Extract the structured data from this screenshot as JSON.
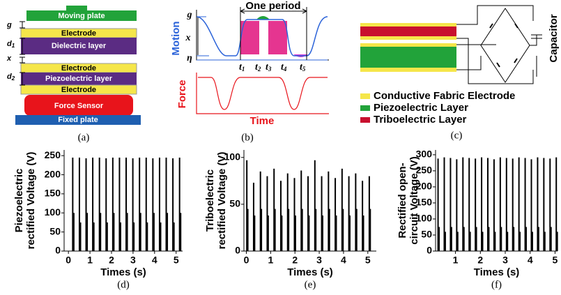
{
  "panel_a": {
    "moving_plate": "Moving plate",
    "electrode_1": "Electrode",
    "dielectric": "Dielectric layer",
    "electrode_2": "Electrode",
    "piezo": "Piezoelectric layer",
    "electrode_3": "Electrode",
    "force_sensor": "Force Sensor",
    "fixed_plate": "Fixed plate",
    "g": "g",
    "d1": {
      "base": "d",
      "sub": "1"
    },
    "x": "x",
    "d2": {
      "base": "d",
      "sub": "2"
    },
    "caption": "(a)"
  },
  "panel_b": {
    "one_period": "One period",
    "g": "g",
    "x": "x",
    "eta": "η",
    "motion": "Motion",
    "force": "Force",
    "time": "Time",
    "t_labels": [
      {
        "base": "t",
        "sub": "1"
      },
      {
        "base": "t",
        "sub": "2"
      },
      {
        "base": "t",
        "sub": "3"
      },
      {
        "base": "t",
        "sub": "4"
      },
      {
        "base": "t",
        "sub": "5"
      }
    ],
    "caption": "(b)"
  },
  "panel_c": {
    "legend": [
      {
        "label": "Conductive Fabric Electrode",
        "color": "#f5e64a"
      },
      {
        "label": "Piezoelectric Layer",
        "color": "#22a33a"
      },
      {
        "label": "Triboelectric Layer",
        "color": "#c8102e"
      }
    ],
    "capacitor": "Capacitor",
    "caption": "(c)"
  },
  "chart_data": [
    {
      "type": "stem",
      "ylabel": [
        "Piezoelectric",
        "rectified Voltage (V)"
      ],
      "xlabel": "Times (s)",
      "caption": "(d)",
      "color": "#000000",
      "x": [
        0.2,
        0.25,
        0.51,
        0.56,
        0.82,
        0.87,
        1.13,
        1.18,
        1.44,
        1.49,
        1.75,
        1.8,
        2.06,
        2.11,
        2.37,
        2.42,
        2.68,
        2.73,
        2.99,
        3.04,
        3.3,
        3.35,
        3.61,
        3.66,
        3.92,
        3.97,
        4.23,
        4.28,
        4.54,
        4.59,
        4.85,
        4.9,
        5.16,
        5.21
      ],
      "values": [
        245,
        100,
        245,
        75,
        243,
        100,
        245,
        75,
        245,
        100,
        243,
        75,
        245,
        100,
        245,
        75,
        245,
        100,
        243,
        75,
        245,
        100,
        245,
        75,
        243,
        100,
        245,
        75,
        245,
        100,
        243,
        75,
        245,
        100
      ],
      "xlim": [
        -0.2,
        5.3
      ],
      "xticks": [
        0,
        1,
        2,
        3,
        4,
        5
      ],
      "ylim": [
        0,
        265
      ],
      "yticks": [
        0,
        50,
        100,
        150,
        200,
        250
      ],
      "grid": false
    },
    {
      "type": "stem",
      "ylabel": [
        "Triboelectric",
        "rectified Voltage (V)"
      ],
      "xlabel": "Times (s)",
      "caption": "(e)",
      "color": "#000000",
      "x": [
        0.02,
        0.06,
        0.3,
        0.34,
        0.58,
        0.62,
        0.86,
        0.9,
        1.14,
        1.18,
        1.42,
        1.46,
        1.7,
        1.74,
        1.98,
        2.02,
        2.26,
        2.3,
        2.54,
        2.58,
        2.82,
        2.86,
        3.1,
        3.14,
        3.38,
        3.42,
        3.66,
        3.7,
        3.94,
        3.98,
        4.22,
        4.26,
        4.5,
        4.54,
        4.78,
        4.82,
        5.06,
        5.1
      ],
      "values": [
        97,
        45,
        73,
        38,
        85,
        45,
        80,
        38,
        88,
        45,
        75,
        38,
        83,
        45,
        78,
        38,
        86,
        45,
        80,
        38,
        97,
        45,
        80,
        38,
        85,
        45,
        78,
        38,
        88,
        45,
        80,
        38,
        83,
        45,
        75,
        38,
        80,
        45
      ],
      "xlim": [
        -0.1,
        5.35
      ],
      "xticks": [
        0,
        1,
        2,
        3,
        4,
        5
      ],
      "ylim": [
        0,
        108
      ],
      "yticks": [
        0,
        50,
        100
      ],
      "grid": false
    },
    {
      "type": "stem",
      "ylabel": [
        "Rectified open-",
        "circuit Voltage (V)"
      ],
      "xlabel": "Times (s)",
      "caption": "(f)",
      "color": "#000000",
      "x": [
        0.3,
        0.34,
        0.55,
        0.59,
        0.8,
        0.84,
        1.05,
        1.09,
        1.3,
        1.34,
        1.55,
        1.59,
        1.8,
        1.84,
        2.05,
        2.09,
        2.3,
        2.34,
        2.55,
        2.59,
        2.8,
        2.84,
        3.05,
        3.09,
        3.3,
        3.34,
        3.55,
        3.59,
        3.8,
        3.84,
        4.05,
        4.09,
        4.3,
        4.34,
        4.55,
        4.59,
        4.8,
        4.84,
        5.05,
        5.09
      ],
      "values": [
        288,
        75,
        292,
        60,
        290,
        75,
        286,
        60,
        292,
        75,
        290,
        60,
        288,
        75,
        292,
        60,
        290,
        75,
        286,
        60,
        292,
        75,
        290,
        60,
        288,
        75,
        292,
        60,
        290,
        75,
        286,
        60,
        292,
        75,
        290,
        60,
        288,
        75,
        292,
        60
      ],
      "xlim": [
        0.2,
        5.1
      ],
      "xticks": [
        1,
        2,
        3,
        4,
        5
      ],
      "ylim": [
        0,
        315
      ],
      "yticks": [
        0,
        50,
        100,
        150,
        200,
        250,
        300
      ],
      "grid": false
    }
  ]
}
